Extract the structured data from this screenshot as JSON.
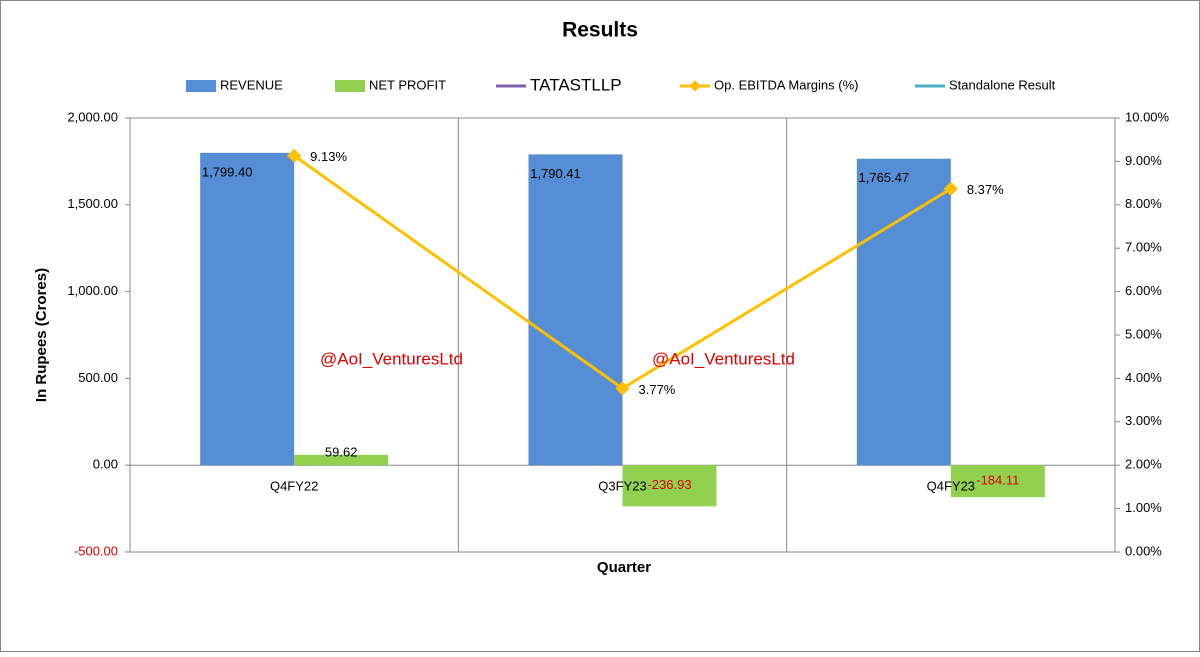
{
  "chart_data": {
    "type": "bar",
    "title": "Results",
    "y_label": "In Rupees (Crores)",
    "x_label": "Quarter",
    "annotations": [
      "@AoI_VenturesLtd",
      "@AoI_VenturesLtd"
    ],
    "categories": [
      "Q4FY22",
      "Q3FY23",
      "Q4FY23"
    ],
    "series": [
      {
        "name": "REVENUE",
        "type": "bar",
        "color": "#558ed5",
        "values": [
          1799.4,
          1790.41,
          1765.47
        ],
        "value_labels": [
          "1,799.40",
          "1,790.41",
          "1,765.47"
        ]
      },
      {
        "name": "NET PROFIT",
        "type": "bar",
        "color": "#92d050",
        "values": [
          59.62,
          -236.93,
          -184.11
        ],
        "value_labels": [
          "59.62",
          "-236.93",
          "-184.11"
        ]
      },
      {
        "name": "TATASTLLP",
        "type": "line",
        "color": "#7f60a8",
        "values": [
          null,
          null,
          null
        ]
      },
      {
        "name": "Op. EBITDA Margins (%)",
        "type": "line",
        "color": "#ffc000",
        "axis": "y2",
        "values": [
          9.13,
          3.77,
          8.37
        ],
        "value_labels": [
          "9.13%",
          "3.77%",
          "8.37%"
        ]
      },
      {
        "name": "Standalone Result",
        "type": "line",
        "color": "#4bacc6",
        "values": [
          null,
          null,
          null
        ]
      }
    ],
    "ylim": [
      -500,
      2000
    ],
    "yticks": [
      {
        "value": -500,
        "label": "-500.00"
      },
      {
        "value": 0,
        "label": "0.00"
      },
      {
        "value": 500,
        "label": "500.00"
      },
      {
        "value": 1000,
        "label": "1,000.00"
      },
      {
        "value": 1500,
        "label": "1,500.00"
      },
      {
        "value": 2000,
        "label": "2,000.00"
      }
    ],
    "y2lim": [
      0,
      10
    ],
    "y2ticks": [
      {
        "value": 0,
        "label": "0.00%"
      },
      {
        "value": 1,
        "label": "1.00%"
      },
      {
        "value": 2,
        "label": "2.00%"
      },
      {
        "value": 3,
        "label": "3.00%"
      },
      {
        "value": 4,
        "label": "4.00%"
      },
      {
        "value": 5,
        "label": "5.00%"
      },
      {
        "value": 6,
        "label": "6.00%"
      },
      {
        "value": 7,
        "label": "7.00%"
      },
      {
        "value": 8,
        "label": "8.00%"
      },
      {
        "value": 9,
        "label": "9.00%"
      },
      {
        "value": 10,
        "label": "10.00%"
      }
    ],
    "legend": "top",
    "grid": true
  }
}
